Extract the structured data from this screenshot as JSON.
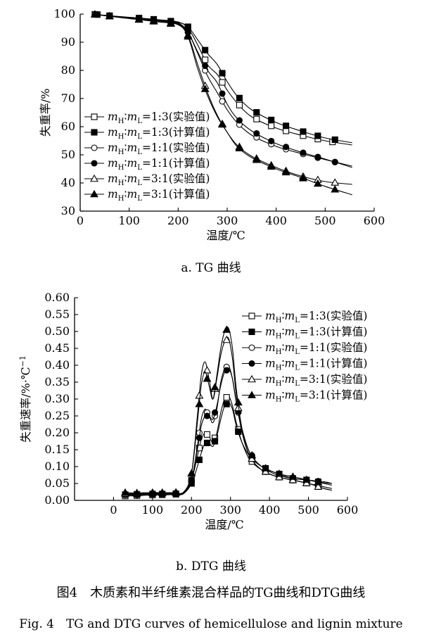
{
  "captions": {
    "tg_sub": "a. TG 曲线",
    "dtg_sub": "b. DTG 曲线",
    "figure_cn": "图4　木质素和半纤维素混合样品的TG曲线和DTG曲线",
    "figure_en": "Fig. 4　TG and DTG curves of hemicellulose and lignin mixture"
  },
  "series_legend": [
    {
      "ratio": "1:3",
      "type": "(实验值)",
      "marker": "square-open"
    },
    {
      "ratio": "1:3",
      "type": "(计算值)",
      "marker": "square-filled"
    },
    {
      "ratio": "1:1",
      "type": "(实验值)",
      "marker": "circle-open"
    },
    {
      "ratio": "1:1",
      "type": "(计算值)",
      "marker": "circle-filled"
    },
    {
      "ratio": "3:1",
      "type": "(实验值)",
      "marker": "triangle-open"
    },
    {
      "ratio": "3:1",
      "type": "(计算值)",
      "marker": "triangle-filled"
    }
  ],
  "legend_prefix": {
    "mH": "m",
    "H": "H",
    "mL": "m",
    "L": "L",
    "colon": "∶",
    "eq": "="
  },
  "chart_data": [
    {
      "type": "line",
      "title": "",
      "xlabel": "温度/℃",
      "ylabel": "失重率/%",
      "xlim": [
        0,
        600
      ],
      "ylim": [
        30,
        100
      ],
      "xticks": [
        0,
        100,
        200,
        300,
        400,
        500,
        600
      ],
      "yticks": [
        30,
        40,
        50,
        60,
        70,
        80,
        90,
        100
      ],
      "grid": false,
      "legend": "bottom-left",
      "series": [
        {
          "marker": "square-open",
          "x": [
            25,
            60,
            120,
            160,
            200,
            220,
            240,
            260,
            280,
            300,
            320,
            350,
            400,
            450,
            500,
            555
          ],
          "y": [
            100,
            99.4,
            98.6,
            98,
            97.2,
            95,
            89,
            82,
            78.5,
            73,
            68.5,
            63.5,
            59.5,
            57,
            55,
            53.5
          ],
          "markers_x": [
            30,
            60,
            120,
            150,
            185,
            220,
            255,
            290,
            325,
            360,
            390,
            420,
            455,
            485,
            515
          ]
        },
        {
          "marker": "square-filled",
          "x": [
            25,
            60,
            120,
            160,
            200,
            220,
            240,
            260,
            280,
            300,
            320,
            350,
            400,
            450,
            500,
            555
          ],
          "y": [
            100,
            99.4,
            98.5,
            97.8,
            97,
            95.5,
            90.8,
            86,
            82,
            76,
            71,
            66,
            61.5,
            58.5,
            56,
            54.3
          ],
          "markers_x": [
            35,
            60,
            120,
            150,
            185,
            220,
            255,
            290,
            325,
            360,
            390,
            420,
            455,
            485,
            520
          ]
        },
        {
          "marker": "circle-open",
          "x": [
            25,
            60,
            120,
            160,
            200,
            220,
            240,
            260,
            280,
            300,
            320,
            350,
            400,
            450,
            500,
            555
          ],
          "y": [
            100,
            99.3,
            98.4,
            97.8,
            96.8,
            93.5,
            86,
            78,
            72,
            66,
            61.5,
            57,
            53,
            50.5,
            48.3,
            46
          ],
          "markers_x": [
            30,
            60,
            120,
            150,
            185,
            220,
            255,
            290,
            325,
            360,
            390,
            420,
            455,
            485,
            520
          ]
        },
        {
          "marker": "circle-filled",
          "x": [
            25,
            60,
            120,
            160,
            200,
            220,
            240,
            260,
            280,
            300,
            320,
            350,
            400,
            450,
            500,
            555
          ],
          "y": [
            100,
            99.3,
            98.3,
            97.6,
            96.6,
            93.5,
            86.5,
            80,
            75.5,
            68,
            63,
            58.5,
            54,
            51,
            48.5,
            45.5
          ],
          "markers_x": [
            35,
            60,
            120,
            150,
            185,
            220,
            255,
            290,
            325,
            360,
            390,
            420,
            455,
            485,
            520
          ]
        },
        {
          "marker": "triangle-open",
          "x": [
            25,
            60,
            120,
            160,
            200,
            220,
            240,
            260,
            280,
            300,
            320,
            350,
            400,
            450,
            500,
            555
          ],
          "y": [
            100,
            99.3,
            98.2,
            97.5,
            96.4,
            92.5,
            82,
            72,
            64,
            58,
            53.5,
            49.5,
            45.5,
            42.5,
            40.5,
            39.5
          ],
          "markers_x": [
            30,
            60,
            120,
            150,
            185,
            220,
            255,
            290,
            325,
            360,
            390,
            420,
            455,
            485,
            520
          ]
        },
        {
          "marker": "triangle-filled",
          "x": [
            25,
            60,
            120,
            160,
            200,
            220,
            240,
            260,
            280,
            300,
            320,
            350,
            400,
            450,
            500,
            555
          ],
          "y": [
            100,
            99.2,
            98,
            97.2,
            96.2,
            92,
            80.5,
            71,
            63.5,
            58,
            53,
            49,
            45,
            42,
            38.8,
            35.8
          ],
          "markers_x": [
            30,
            60,
            120,
            150,
            185,
            220,
            255,
            290,
            325,
            360,
            390,
            420,
            455,
            485,
            520
          ]
        }
      ]
    },
    {
      "type": "line",
      "title": "",
      "xlabel": "温度/℃",
      "ylabel": "失重速率/%·℃",
      "ylabel_sup": "−1",
      "xlim": [
        -100,
        600
      ],
      "ylim": [
        0,
        0.6
      ],
      "xticks": [
        0,
        100,
        200,
        300,
        400,
        500,
        600
      ],
      "yticks": [
        "0.00",
        "0.05",
        "0.10",
        "0.15",
        "0.20",
        "0.25",
        "0.30",
        "0.35",
        "0.40",
        "0.45",
        "0.50",
        "0.55",
        "0.60"
      ],
      "grid": false,
      "legend": "top-right",
      "series": [
        {
          "marker": "square-open",
          "x": [
            30,
            60,
            100,
            150,
            180,
            200,
            215,
            225,
            235,
            245,
            255,
            265,
            275,
            285,
            295,
            305,
            315,
            330,
            350,
            380,
            420,
            460,
            500,
            540,
            560
          ],
          "y": [
            0.013,
            0.014,
            0.016,
            0.017,
            0.02,
            0.06,
            0.13,
            0.18,
            0.2,
            0.19,
            0.17,
            0.2,
            0.26,
            0.3,
            0.31,
            0.28,
            0.23,
            0.17,
            0.12,
            0.09,
            0.07,
            0.06,
            0.05,
            0.035,
            0.03
          ],
          "markers_x": [
            30,
            60,
            100,
            125,
            160,
            200,
            220,
            240,
            260,
            290,
            320,
            355,
            390,
            425,
            460,
            495,
            525
          ]
        },
        {
          "marker": "square-filled",
          "x": [
            30,
            60,
            100,
            150,
            180,
            200,
            215,
            225,
            235,
            245,
            255,
            265,
            275,
            285,
            295,
            305,
            315,
            330,
            350,
            380,
            420,
            460,
            500,
            540,
            560
          ],
          "y": [
            0.017,
            0.018,
            0.019,
            0.019,
            0.021,
            0.05,
            0.1,
            0.14,
            0.17,
            0.17,
            0.16,
            0.19,
            0.24,
            0.28,
            0.29,
            0.27,
            0.22,
            0.17,
            0.13,
            0.1,
            0.08,
            0.065,
            0.06,
            0.052,
            0.05
          ],
          "markers_x": [
            30,
            60,
            100,
            125,
            160,
            200,
            220,
            240,
            260,
            290,
            320,
            355,
            390,
            425,
            460,
            495,
            525
          ]
        },
        {
          "marker": "circle-open",
          "x": [
            30,
            60,
            100,
            150,
            180,
            200,
            215,
            225,
            235,
            245,
            255,
            265,
            275,
            285,
            295,
            305,
            315,
            330,
            350,
            380,
            420,
            460,
            500,
            540,
            560
          ],
          "y": [
            0.016,
            0.016,
            0.018,
            0.019,
            0.022,
            0.06,
            0.16,
            0.24,
            0.27,
            0.25,
            0.23,
            0.27,
            0.35,
            0.39,
            0.4,
            0.36,
            0.29,
            0.2,
            0.13,
            0.09,
            0.07,
            0.06,
            0.05,
            0.04,
            0.035
          ],
          "markers_x": [
            30,
            60,
            100,
            125,
            160,
            200,
            220,
            240,
            260,
            290,
            320,
            355,
            390,
            425,
            460,
            495,
            525
          ]
        },
        {
          "marker": "circle-filled",
          "x": [
            30,
            60,
            100,
            150,
            180,
            200,
            215,
            225,
            235,
            245,
            255,
            265,
            275,
            285,
            295,
            305,
            315,
            330,
            350,
            380,
            420,
            460,
            500,
            540,
            560
          ],
          "y": [
            0.018,
            0.018,
            0.02,
            0.021,
            0.023,
            0.06,
            0.15,
            0.22,
            0.25,
            0.25,
            0.24,
            0.28,
            0.34,
            0.38,
            0.39,
            0.36,
            0.29,
            0.21,
            0.14,
            0.1,
            0.075,
            0.065,
            0.06,
            0.055,
            0.05
          ],
          "markers_x": [
            30,
            60,
            100,
            125,
            160,
            200,
            220,
            240,
            260,
            290,
            320,
            355,
            390,
            425,
            460,
            495,
            525
          ]
        },
        {
          "marker": "triangle-open",
          "x": [
            30,
            60,
            100,
            150,
            180,
            200,
            215,
            225,
            235,
            245,
            255,
            265,
            275,
            285,
            295,
            305,
            315,
            330,
            350,
            380,
            420,
            460,
            500,
            540,
            560
          ],
          "y": [
            0.02,
            0.02,
            0.022,
            0.022,
            0.024,
            0.08,
            0.25,
            0.37,
            0.41,
            0.36,
            0.3,
            0.36,
            0.43,
            0.47,
            0.48,
            0.42,
            0.31,
            0.2,
            0.13,
            0.09,
            0.07,
            0.06,
            0.05,
            0.035,
            0.03
          ],
          "markers_x": [
            30,
            60,
            100,
            125,
            160,
            200,
            220,
            240,
            260,
            290,
            320,
            355,
            390,
            425,
            460,
            495,
            525
          ]
        },
        {
          "marker": "triangle-filled",
          "x": [
            30,
            60,
            100,
            150,
            180,
            200,
            215,
            225,
            235,
            245,
            255,
            265,
            275,
            285,
            295,
            305,
            315,
            330,
            350,
            380,
            420,
            460,
            500,
            540,
            560
          ],
          "y": [
            0.023,
            0.022,
            0.023,
            0.023,
            0.025,
            0.08,
            0.23,
            0.34,
            0.38,
            0.34,
            0.3,
            0.37,
            0.45,
            0.5,
            0.51,
            0.45,
            0.33,
            0.21,
            0.14,
            0.1,
            0.08,
            0.07,
            0.06,
            0.05,
            0.045
          ],
          "markers_x": [
            30,
            60,
            100,
            125,
            160,
            200,
            220,
            240,
            260,
            290,
            320,
            355,
            390,
            425,
            460,
            495,
            525
          ]
        }
      ]
    }
  ]
}
